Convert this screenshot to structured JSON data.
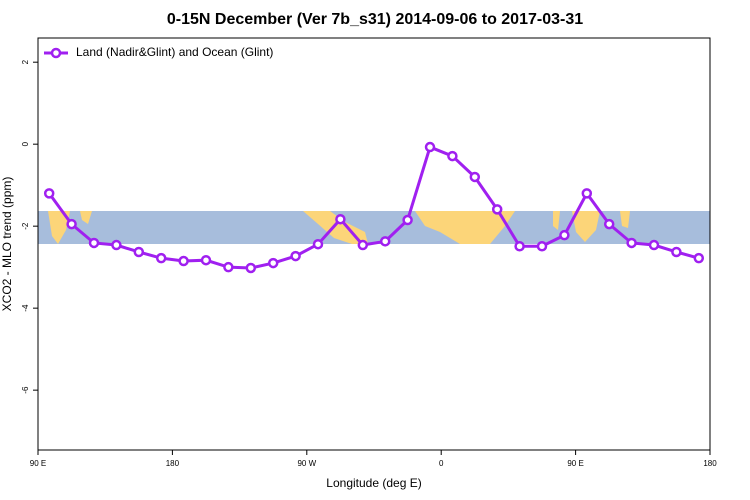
{
  "chart_data": {
    "type": "line",
    "title": "0-15N December (Ver 7b_s31)   2014-09-06 to 2017-03-31",
    "x_label": "Longitude (deg E)",
    "y_label": "XCO2 - MLO trend (ppm)",
    "x": [
      97.5,
      112.5,
      127.5,
      142.5,
      157.5,
      172.5,
      187.5,
      202.5,
      217.5,
      232.5,
      247.5,
      262.5,
      277.5,
      292.5,
      307.5,
      322.5,
      337.5,
      352.5,
      367.5,
      382.5,
      397.5,
      412.5,
      427.5,
      442.5,
      457.5,
      472.5,
      487.5,
      502.5,
      517.5,
      532.5
    ],
    "series": [
      {
        "name": "Land (Nadir&Glint) and Ocean (Glint)",
        "color": "#a020f0",
        "values": [
          -1.2,
          -1.95,
          -2.41,
          -2.46,
          -2.63,
          -2.78,
          -2.85,
          -2.83,
          -3.0,
          -3.02,
          -2.9,
          -2.73,
          -2.44,
          -1.83,
          -2.46,
          -2.37,
          -1.85,
          -0.07,
          -0.29,
          -0.8,
          -1.59,
          -2.49,
          -2.49,
          -2.22,
          -1.2,
          -1.95,
          -2.41,
          -2.46,
          -2.63,
          -2.78
        ]
      }
    ],
    "xlim": [
      90,
      540
    ],
    "xticks": [
      {
        "value": 90,
        "label": "90 E"
      },
      {
        "value": 180,
        "label": "180"
      },
      {
        "value": 270,
        "label": "90 W"
      },
      {
        "value": 360,
        "label": "0"
      },
      {
        "value": 450,
        "label": "90 E"
      },
      {
        "value": 540,
        "label": "180"
      }
    ],
    "ylim": [
      -7.46,
      2.59
    ],
    "yticks": [
      2,
      0,
      -2,
      -4,
      -6
    ],
    "legend": "top-left"
  }
}
